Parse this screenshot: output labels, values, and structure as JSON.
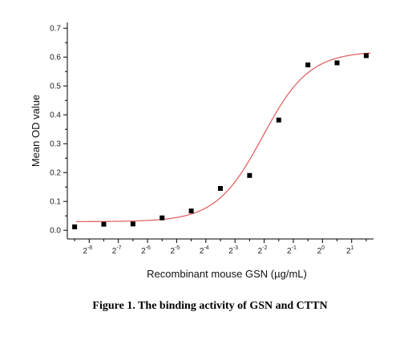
{
  "caption": "Figure 1. The binding activity of GSN and CTTN",
  "chart_data": {
    "type": "scatter",
    "title": "",
    "xlabel": "Recombinant mouse GSN (µg/mL)",
    "ylabel": "Mean OD value",
    "x_scale": "log2",
    "xlim_exponent": [
      -8.75,
      1.75
    ],
    "ylim": [
      -0.03,
      0.72
    ],
    "x_ticks": [
      {
        "base": "2",
        "exp": "-8",
        "value": -8
      },
      {
        "base": "2",
        "exp": "-7",
        "value": -7
      },
      {
        "base": "2",
        "exp": "-6",
        "value": -6
      },
      {
        "base": "2",
        "exp": "-5",
        "value": -5
      },
      {
        "base": "2",
        "exp": "-4",
        "value": -4
      },
      {
        "base": "2",
        "exp": "-3",
        "value": -3
      },
      {
        "base": "2",
        "exp": "-2",
        "value": -2
      },
      {
        "base": "2",
        "exp": "-1",
        "value": -1
      },
      {
        "base": "2",
        "exp": "0",
        "value": 0
      },
      {
        "base": "2",
        "exp": "1",
        "value": 1
      }
    ],
    "y_ticks": [
      "0.0",
      "0.1",
      "0.2",
      "0.3",
      "0.4",
      "0.5",
      "0.6",
      "0.7"
    ],
    "y_tick_values": [
      0.0,
      0.1,
      0.2,
      0.3,
      0.4,
      0.5,
      0.6,
      0.7
    ],
    "points": [
      {
        "x_exp": -8.5,
        "y": 0.012
      },
      {
        "x_exp": -7.5,
        "y": 0.021
      },
      {
        "x_exp": -6.5,
        "y": 0.022
      },
      {
        "x_exp": -5.5,
        "y": 0.043
      },
      {
        "x_exp": -4.5,
        "y": 0.067
      },
      {
        "x_exp": -3.5,
        "y": 0.145
      },
      {
        "x_exp": -2.5,
        "y": 0.19
      },
      {
        "x_exp": -1.5,
        "y": 0.382
      },
      {
        "x_exp": -0.5,
        "y": 0.573
      },
      {
        "x_exp": 0.5,
        "y": 0.58
      },
      {
        "x_exp": 1.5,
        "y": 0.605
      }
    ],
    "fit_curve": {
      "type": "4PL",
      "bottom": 0.03,
      "top": 0.62,
      "ec50_exp": -2.05,
      "slope_per_log2": 1.25
    },
    "grid": false,
    "legend": "none",
    "colors": {
      "points": "#000000",
      "curve": "#e05a5a",
      "axis": "#000000"
    }
  }
}
